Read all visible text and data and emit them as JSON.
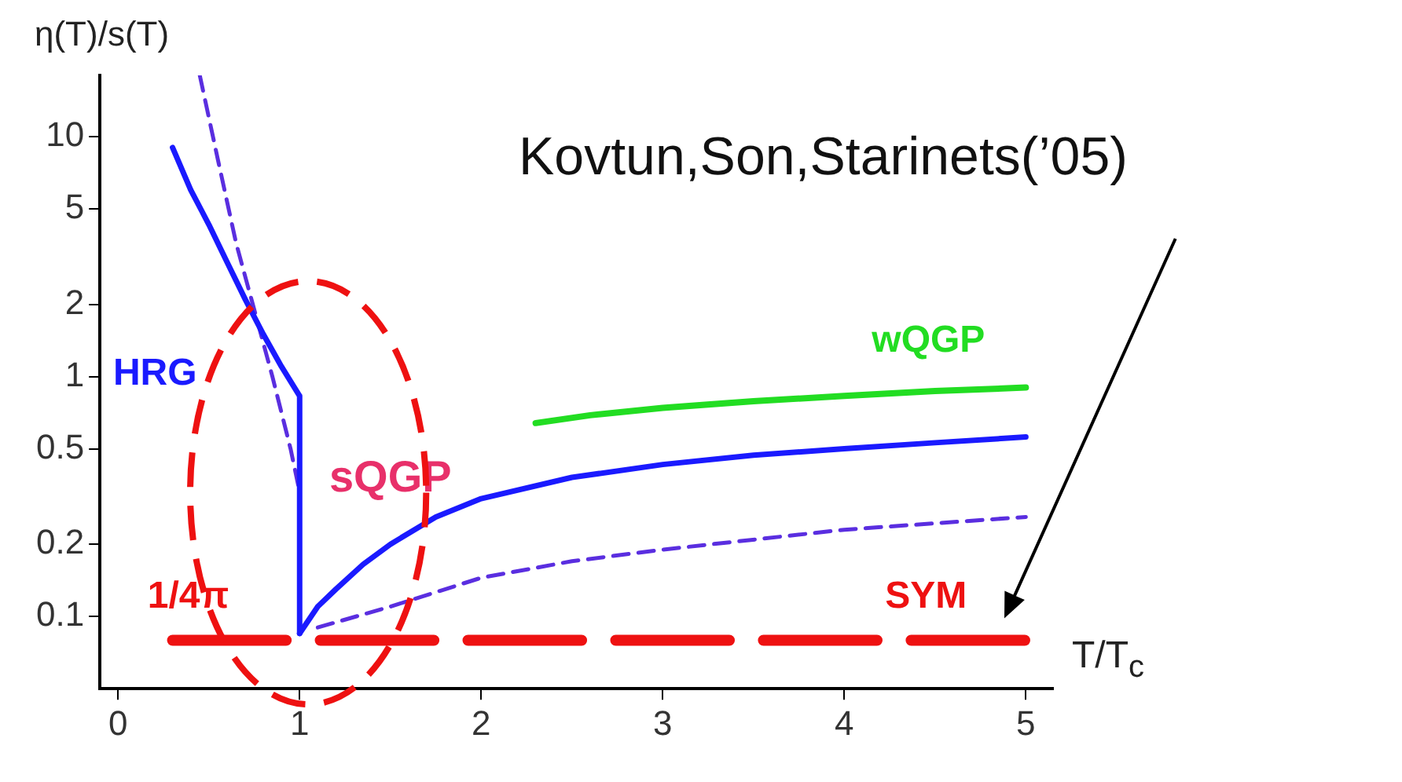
{
  "chart_data": {
    "type": "line",
    "xlabel": "T/T$_{c}$",
    "ylabel": "η(T)/s(T)",
    "annotations": [
      "Kovtun,Son,Starinets(’05)",
      "sQGP",
      {
        "text": "SYM",
        "x": 4.45,
        "y": 0.0796
      }
    ],
    "series": [
      {
        "name": "HRG",
        "color": "#1a1aff",
        "x": [
          0.3,
          0.4,
          0.5,
          0.6,
          0.7,
          0.8,
          0.9,
          1,
          1
        ],
        "values": [
          9,
          6,
          4.3,
          3,
          2.1,
          1.5,
          1.1,
          0.83,
          0.085
        ]
      },
      {
        "color": "#1a1aff",
        "x": [
          1,
          1.1,
          1.2,
          1.35,
          1.5,
          1.75,
          2,
          2.5,
          3,
          3.5,
          4,
          4.5,
          5
        ],
        "values": [
          0.085,
          0.11,
          0.13,
          0.165,
          0.2,
          0.26,
          0.31,
          0.38,
          0.43,
          0.47,
          0.5,
          0.53,
          0.56
        ]
      },
      {
        "color": "#5a2ee0",
        "line_style": "dashed",
        "x": [
          0.45,
          0.55,
          0.65,
          0.75,
          0.85,
          0.95,
          1,
          1.05,
          1.1,
          1.5,
          2,
          2.5,
          3,
          4,
          5
        ],
        "values": [
          18,
          8,
          3.6,
          1.9,
          1,
          0.5,
          0.33,
          null,
          0.09,
          0.11,
          0.145,
          0.17,
          0.19,
          0.23,
          0.26
        ]
      },
      {
        "name": "wQGP",
        "color": "#22dd22",
        "x": [
          2.3,
          2.6,
          3,
          3.5,
          4,
          4.5,
          5
        ],
        "values": [
          0.64,
          0.69,
          0.74,
          0.79,
          0.83,
          0.87,
          0.9
        ]
      },
      {
        "name": "1/4π",
        "color": "#ee1111",
        "line_style": "dashed",
        "x": [
          0.3,
          5
        ],
        "values": [
          0.0796,
          0.0796
        ]
      }
    ],
    "xlim": [
      -0.1,
      5.15
    ],
    "xticks": [
      0,
      1,
      2,
      3,
      4,
      5
    ],
    "ylim": [
      0.05,
      18
    ],
    "yticks": [
      0.1,
      0.2,
      0.5,
      1,
      2,
      5,
      10
    ],
    "log": "y",
    "grid": false,
    "legend": false,
    "marker": "none"
  }
}
